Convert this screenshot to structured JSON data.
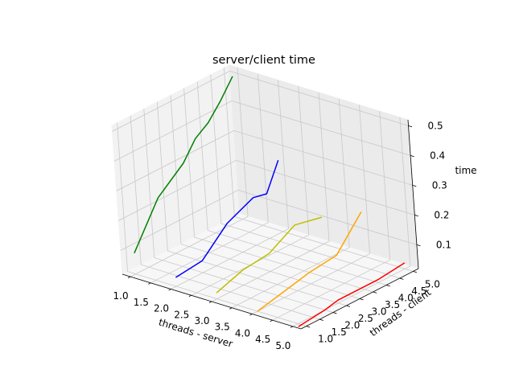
{
  "chart_data": {
    "type": "line3d",
    "title": "server/client time",
    "xlabel": "threads - server",
    "ylabel": "threads - client",
    "zlabel": "time",
    "xlim": [
      0.8,
      5.2
    ],
    "ylim": [
      0.8,
      5.2
    ],
    "zlim": [
      0.02,
      0.52
    ],
    "x_ticks": [
      "1.0",
      "1.5",
      "2.0",
      "2.5",
      "3.0",
      "3.5",
      "4.0",
      "4.5",
      "5.0"
    ],
    "y_ticks": [
      "1.0",
      "1.5",
      "2.0",
      "2.5",
      "3.0",
      "3.5",
      "4.0",
      "4.5",
      "5.0"
    ],
    "z_ticks": [
      "0.1",
      "0.2",
      "0.3",
      "0.4",
      "0.5"
    ],
    "grid": true,
    "series": [
      {
        "color": "#008000",
        "x": [
          1,
          1,
          1,
          1,
          1,
          1,
          1
        ],
        "y": [
          1,
          2,
          3,
          3.5,
          4,
          4.5,
          5
        ],
        "z": [
          0.09,
          0.23,
          0.3,
          0.36,
          0.39,
          0.44,
          0.5
        ]
      },
      {
        "color": "#0000ff",
        "x": [
          2,
          2,
          2,
          2,
          2,
          2
        ],
        "y": [
          1,
          2,
          3,
          4,
          4.5,
          5
        ],
        "z": [
          0.05,
          0.06,
          0.14,
          0.18,
          0.17,
          0.26
        ]
      },
      {
        "color": "#bfbf00",
        "x": [
          3,
          3,
          3,
          3,
          3
        ],
        "y": [
          1,
          2,
          3,
          4,
          5
        ],
        "z": [
          0.04,
          0.07,
          0.08,
          0.13,
          0.11
        ]
      },
      {
        "color": "#ffa500",
        "x": [
          4,
          4,
          4,
          4,
          4
        ],
        "y": [
          1,
          2,
          3,
          4,
          5
        ],
        "z": [
          0.02,
          0.04,
          0.06,
          0.07,
          0.17
        ]
      },
      {
        "color": "#ff0000",
        "x": [
          5,
          5,
          5,
          5,
          5,
          5,
          5
        ],
        "y": [
          1,
          2,
          2.5,
          3,
          3.5,
          4,
          5
        ],
        "z": [
          0.01,
          0.02,
          0.03,
          0.03,
          0.03,
          0.03,
          0.04
        ]
      }
    ]
  }
}
